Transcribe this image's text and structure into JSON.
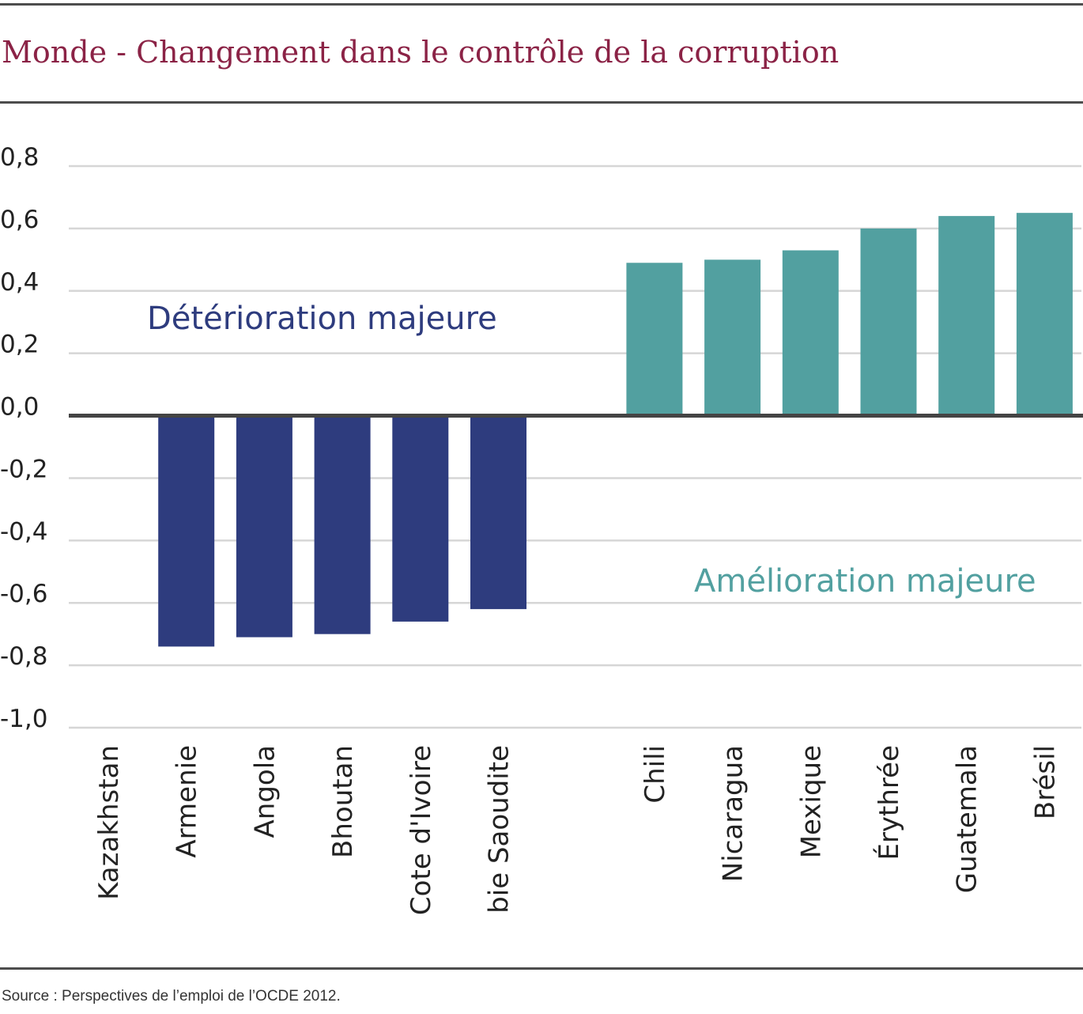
{
  "title": "Monde - Changement dans le contrôle de la corruption",
  "source": "Source : Perspectives de l’emploi de l’OCDE 2012.",
  "colors": {
    "title": "#8b2346",
    "negative": "#2e3c7e",
    "positive": "#52a0a0"
  },
  "chart_data": {
    "type": "bar",
    "ylim": [
      -1.0,
      0.8
    ],
    "yticks": [
      "0,8",
      "0,6",
      "0,4",
      "0,2",
      "0,0",
      "-0,2",
      "-0,4",
      "-0,6",
      "-0,8",
      "-1,0"
    ],
    "ytick_values": [
      0.8,
      0.6,
      0.4,
      0.2,
      0.0,
      -0.2,
      -0.4,
      -0.6,
      -0.8,
      -1.0
    ],
    "grid": true,
    "categories": [
      "Kazakhstan",
      "Armenie",
      "Angola",
      "Bhoutan",
      "Cote d'Ivoire",
      "bie Saoudite",
      "",
      "Chili",
      "Nicaragua",
      "Mexique",
      "Érythrée",
      "Guatemala",
      "Brésil"
    ],
    "values": [
      null,
      -0.74,
      -0.71,
      -0.7,
      -0.66,
      -0.62,
      null,
      0.49,
      0.5,
      0.53,
      0.6,
      0.64,
      0.65
    ],
    "annotations": [
      {
        "text": "Détérioration majeure",
        "color": "#2e3c7e"
      },
      {
        "text": "Amélioration majeure",
        "color": "#52a0a0"
      }
    ]
  }
}
